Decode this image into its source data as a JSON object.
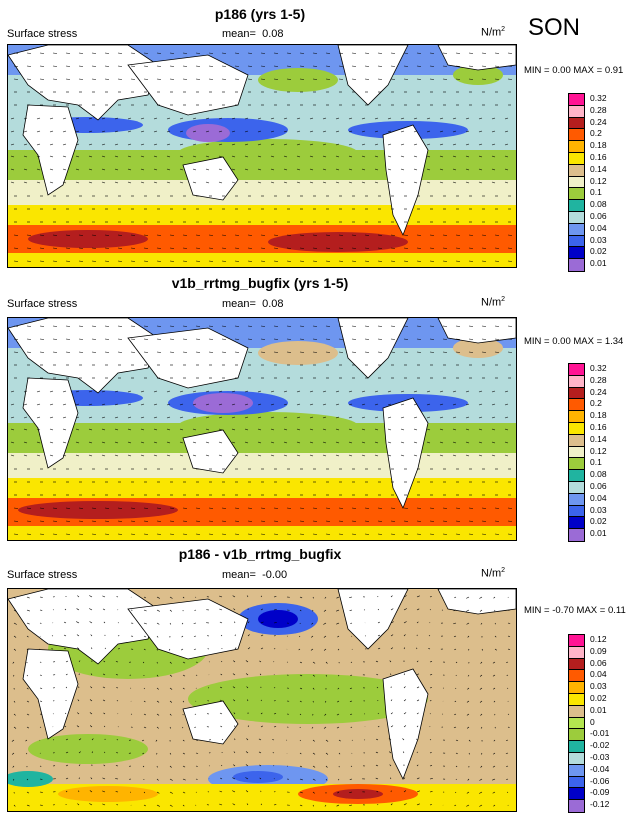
{
  "season": "SON",
  "colors": {
    "levels_main": [
      "#9b6bd6",
      "#0000c8",
      "#3c64ec",
      "#6e96f0",
      "#b4dcdc",
      "#20b4a0",
      "#9ccc3c",
      "#f0f0c8",
      "#dcbe8c",
      "#fae600",
      "#ffb400",
      "#ff5a00",
      "#b41e1e",
      "#ffb4c8",
      "#ff1494"
    ],
    "levels_diff": [
      "#9b6bd6",
      "#0000c8",
      "#3c64ec",
      "#6e96f0",
      "#b4dcdc",
      "#20b4a0",
      "#9ccc3c",
      "#b4e650",
      "#dcbe8c",
      "#fae600",
      "#ffb400",
      "#ff5a00",
      "#b41e1e",
      "#ffb4c8",
      "#ff1494"
    ]
  },
  "panels": [
    {
      "title": "p186 (yrs 1-5)",
      "variable": "Surface stress",
      "mean_label": "mean=",
      "mean_value": "0.08",
      "units": "N/m",
      "units_exp": "2",
      "min_label": "MIN =",
      "min_value": "0.00",
      "max_label": "MAX =",
      "max_value": "0.91",
      "colorbar_labels": [
        "0.32",
        "0.28",
        "0.24",
        "0.2",
        "0.18",
        "0.16",
        "0.14",
        "0.12",
        "0.1",
        "0.08",
        "0.06",
        "0.04",
        "0.03",
        "0.02",
        "0.01"
      ]
    },
    {
      "title": "v1b_rrtmg_bugfix (yrs 1-5)",
      "variable": "Surface stress",
      "mean_label": "mean=",
      "mean_value": "0.08",
      "units": "N/m",
      "units_exp": "2",
      "min_label": "MIN =",
      "min_value": "0.00",
      "max_label": "MAX =",
      "max_value": "1.34",
      "colorbar_labels": [
        "0.32",
        "0.28",
        "0.24",
        "0.2",
        "0.18",
        "0.16",
        "0.14",
        "0.12",
        "0.1",
        "0.08",
        "0.06",
        "0.04",
        "0.03",
        "0.02",
        "0.01"
      ]
    },
    {
      "title": "p186 - v1b_rrtmg_bugfix",
      "variable": "Surface stress",
      "mean_label": "mean=",
      "mean_value": "-0.00",
      "units": "N/m",
      "units_exp": "2",
      "min_label": "MIN =",
      "min_value": "-0.70",
      "max_label": "MAX =",
      "max_value": "0.11",
      "colorbar_labels": [
        "0.12",
        "0.09",
        "0.06",
        "0.04",
        "0.03",
        "0.02",
        "0.01",
        "0",
        "-0.01",
        "-0.02",
        "-0.03",
        "-0.04",
        "-0.06",
        "-0.09",
        "-0.12"
      ]
    }
  ]
}
